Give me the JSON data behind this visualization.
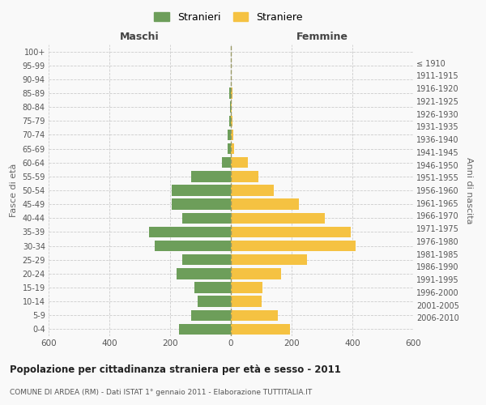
{
  "age_groups": [
    "0-4",
    "5-9",
    "10-14",
    "15-19",
    "20-24",
    "25-29",
    "30-34",
    "35-39",
    "40-44",
    "45-49",
    "50-54",
    "55-59",
    "60-64",
    "65-69",
    "70-74",
    "75-79",
    "80-84",
    "85-89",
    "90-94",
    "95-99",
    "100+"
  ],
  "birth_years": [
    "2006-2010",
    "2001-2005",
    "1996-2000",
    "1991-1995",
    "1986-1990",
    "1981-1985",
    "1976-1980",
    "1971-1975",
    "1966-1970",
    "1961-1965",
    "1956-1960",
    "1951-1955",
    "1946-1950",
    "1941-1945",
    "1936-1940",
    "1931-1935",
    "1926-1930",
    "1921-1925",
    "1916-1920",
    "1911-1915",
    "≤ 1910"
  ],
  "males": [
    170,
    130,
    110,
    120,
    180,
    160,
    250,
    270,
    160,
    195,
    195,
    130,
    30,
    10,
    10,
    5,
    2,
    5,
    1,
    0,
    0
  ],
  "females": [
    195,
    155,
    100,
    105,
    165,
    250,
    410,
    395,
    310,
    225,
    140,
    90,
    55,
    10,
    8,
    5,
    2,
    5,
    1,
    0,
    0
  ],
  "male_color": "#6d9e5a",
  "female_color": "#f5c242",
  "title": "Popolazione per cittadinanza straniera per età e sesso - 2011",
  "subtitle": "COMUNE DI ARDEA (RM) - Dati ISTAT 1° gennaio 2011 - Elaborazione TUTTITALIA.IT",
  "xlabel_left": "Maschi",
  "xlabel_right": "Femmine",
  "ylabel_left": "Fasce di età",
  "ylabel_right": "Anni di nascita",
  "legend_male": "Stranieri",
  "legend_female": "Straniere",
  "xlim": 600,
  "background_color": "#f9f9f9",
  "grid_color": "#cccccc"
}
